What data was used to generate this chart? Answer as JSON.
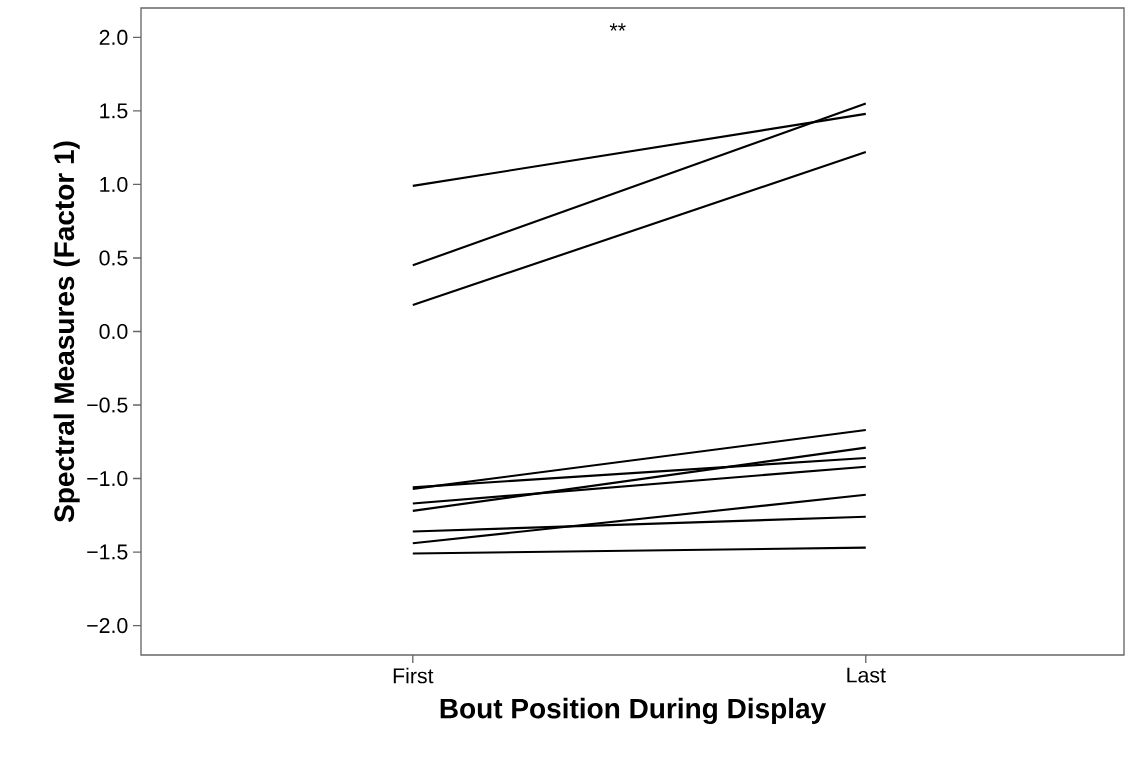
{
  "chart_data": {
    "type": "line",
    "xlabel": "Bout Position During Display",
    "ylabel": "Spectral Measures (Factor 1)",
    "annotations": [
      "**"
    ],
    "categories": [
      "First",
      "Last"
    ],
    "ylim": [
      -2.2,
      2.2
    ],
    "yticks": [
      {
        "value": -2,
        "label": "−2.0"
      },
      {
        "value": -1.5,
        "label": "−1.5"
      },
      {
        "value": -1,
        "label": "−1.0"
      },
      {
        "value": -0.5,
        "label": "−0.5"
      },
      {
        "value": 0,
        "label": "0.0"
      },
      {
        "value": 0.5,
        "label": "0.5"
      },
      {
        "value": 1,
        "label": "1.0"
      },
      {
        "value": 1.5,
        "label": "1.5"
      },
      {
        "value": 2,
        "label": "2.0"
      }
    ],
    "line_style": "solid",
    "marker": "none",
    "series": [
      {
        "color": "#000000",
        "values": [
          0.99,
          1.48
        ]
      },
      {
        "color": "#000000",
        "values": [
          0.45,
          1.55
        ]
      },
      {
        "color": "#000000",
        "values": [
          0.18,
          1.22
        ]
      },
      {
        "color": "#000000",
        "values": [
          -1.07,
          -0.67
        ]
      },
      {
        "color": "#000000",
        "values": [
          -1.06,
          -0.86
        ]
      },
      {
        "color": "#000000",
        "values": [
          -1.22,
          -0.79
        ]
      },
      {
        "color": "#000000",
        "values": [
          -1.17,
          -0.92
        ]
      },
      {
        "color": "#000000",
        "values": [
          -1.44,
          -1.11
        ]
      },
      {
        "color": "#000000",
        "values": [
          -1.36,
          -1.26
        ]
      },
      {
        "color": "#000000",
        "values": [
          -1.51,
          -1.47
        ]
      }
    ]
  }
}
